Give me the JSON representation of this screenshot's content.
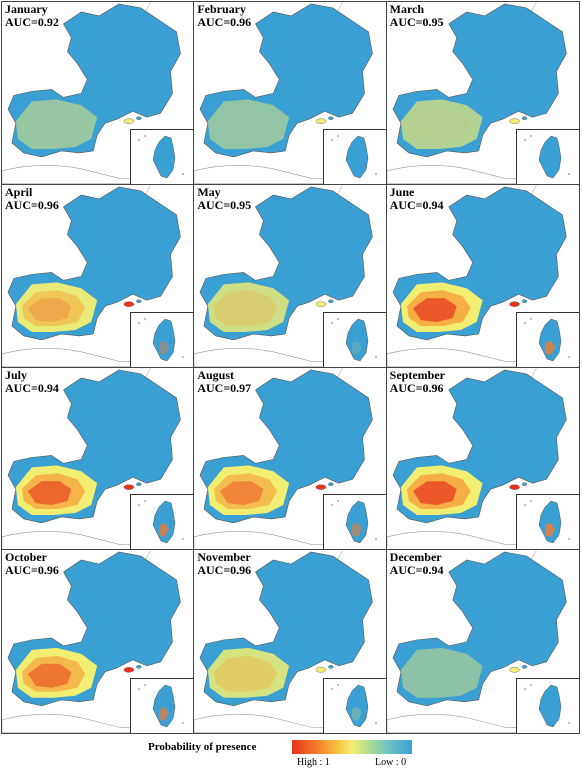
{
  "panels": [
    {
      "month": "January",
      "auc": "AUC=0.92",
      "intensity": 0.2
    },
    {
      "month": "February",
      "auc": "AUC=0.96",
      "intensity": 0.18
    },
    {
      "month": "March",
      "auc": "AUC=0.95",
      "intensity": 0.35
    },
    {
      "month": "April",
      "auc": "AUC=0.96",
      "intensity": 0.65
    },
    {
      "month": "May",
      "auc": "AUC=0.95",
      "intensity": 0.5
    },
    {
      "month": "June",
      "auc": "AUC=0.94",
      "intensity": 0.9
    },
    {
      "month": "July",
      "auc": "AUC=0.94",
      "intensity": 0.85
    },
    {
      "month": "August",
      "auc": "AUC=0.97",
      "intensity": 0.75
    },
    {
      "month": "September",
      "auc": "AUC=0.96",
      "intensity": 0.9
    },
    {
      "month": "October",
      "auc": "AUC=0.96",
      "intensity": 0.8
    },
    {
      "month": "November",
      "auc": "AUC=0.96",
      "intensity": 0.55
    },
    {
      "month": "December",
      "auc": "AUC=0.94",
      "intensity": 0.15
    }
  ],
  "legend": {
    "title": "Probability of presence",
    "high_label": "High : 1",
    "low_label": "Low : 0"
  },
  "colors": {
    "low": "#3a9fd3",
    "mid": "#f2ee72",
    "high": "#e8321e",
    "border": "#444444"
  }
}
